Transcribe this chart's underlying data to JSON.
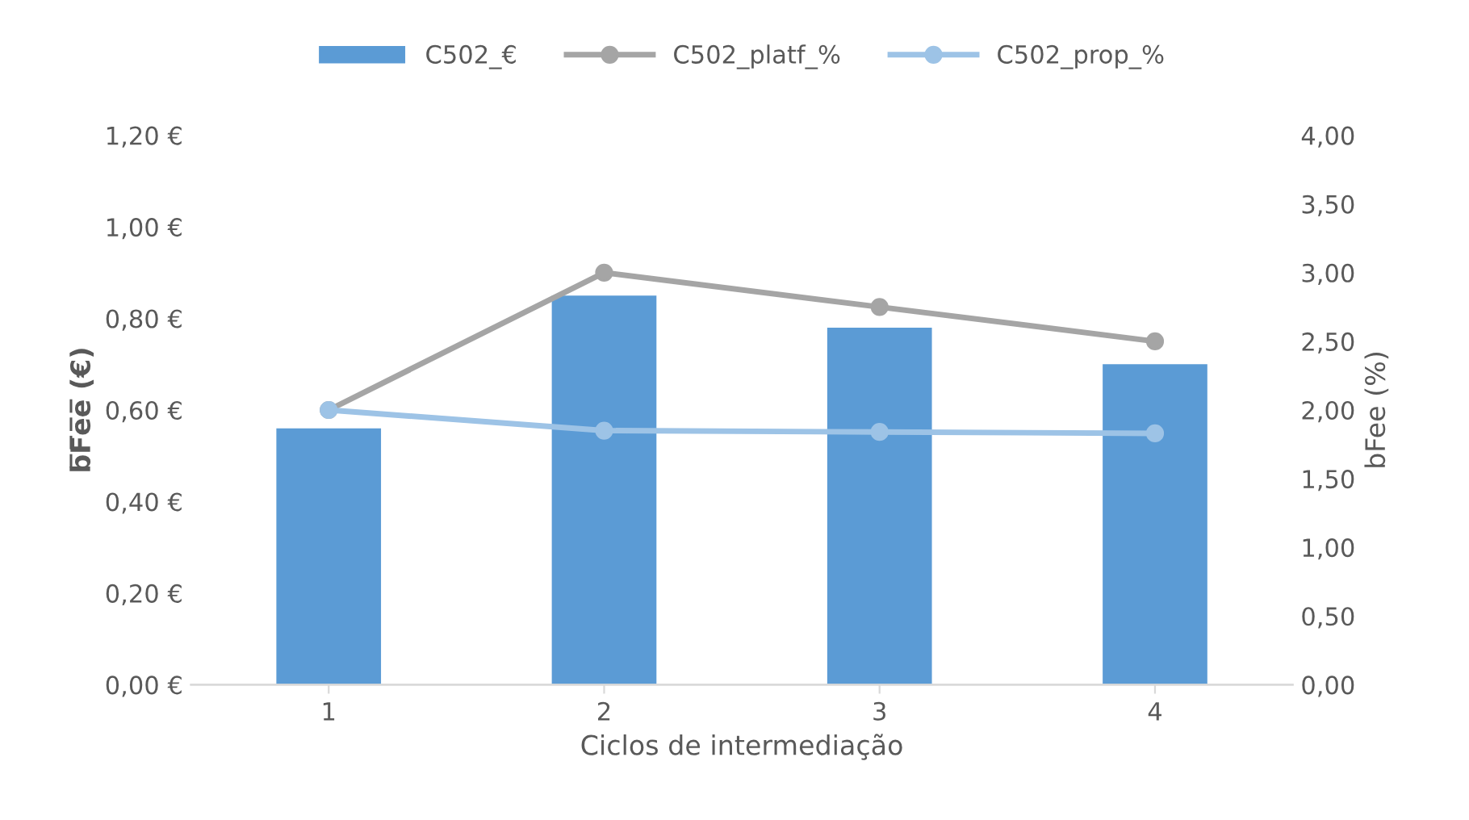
{
  "chart_data": {
    "type": "bar",
    "xlabel": "Ciclos de intermediação",
    "ylabel": "b̅F̅e̅e̅ (€)",
    "y2label": "bFee (%)",
    "categories": [
      "1",
      "2",
      "3",
      "4"
    ],
    "series": [
      {
        "name": "C502_€",
        "color": "#5b9bd5",
        "values": [
          0.56,
          0.85,
          0.78,
          0.7
        ]
      },
      {
        "name": "C502_platf_%",
        "type": "line",
        "axis": "y2",
        "color": "#a5a5a5",
        "values": [
          2.0,
          3.0,
          2.75,
          2.5
        ]
      },
      {
        "name": "C502_prop_%",
        "type": "line",
        "axis": "y2",
        "color": "#9dc3e6",
        "values": [
          2.0,
          1.85,
          1.84,
          1.83
        ]
      }
    ],
    "ylim": [
      0,
      1.2
    ],
    "yticks": [
      {
        "value": 0,
        "label": "0,00 €"
      },
      {
        "value": 0.2,
        "label": "0,20 €"
      },
      {
        "value": 0.4,
        "label": "0,40 €"
      },
      {
        "value": 0.6,
        "label": "0,60 €"
      },
      {
        "value": 0.8,
        "label": "0,80 €"
      },
      {
        "value": 1.0,
        "label": "1,00 €"
      },
      {
        "value": 1.2,
        "label": "1,20 €"
      }
    ],
    "y2lim": [
      0,
      4
    ],
    "y2ticks": [
      {
        "value": 0,
        "label": "0,00"
      },
      {
        "value": 0.5,
        "label": "0,50"
      },
      {
        "value": 1,
        "label": "1,00"
      },
      {
        "value": 1.5,
        "label": "1,50"
      },
      {
        "value": 2,
        "label": "2,00"
      },
      {
        "value": 2.5,
        "label": "2,50"
      },
      {
        "value": 3,
        "label": "3,00"
      },
      {
        "value": 3.5,
        "label": "3,50"
      },
      {
        "value": 4,
        "label": "4,00"
      }
    ],
    "grid": false,
    "legend": "top",
    "marker": "circle",
    "line_style": "solid"
  }
}
